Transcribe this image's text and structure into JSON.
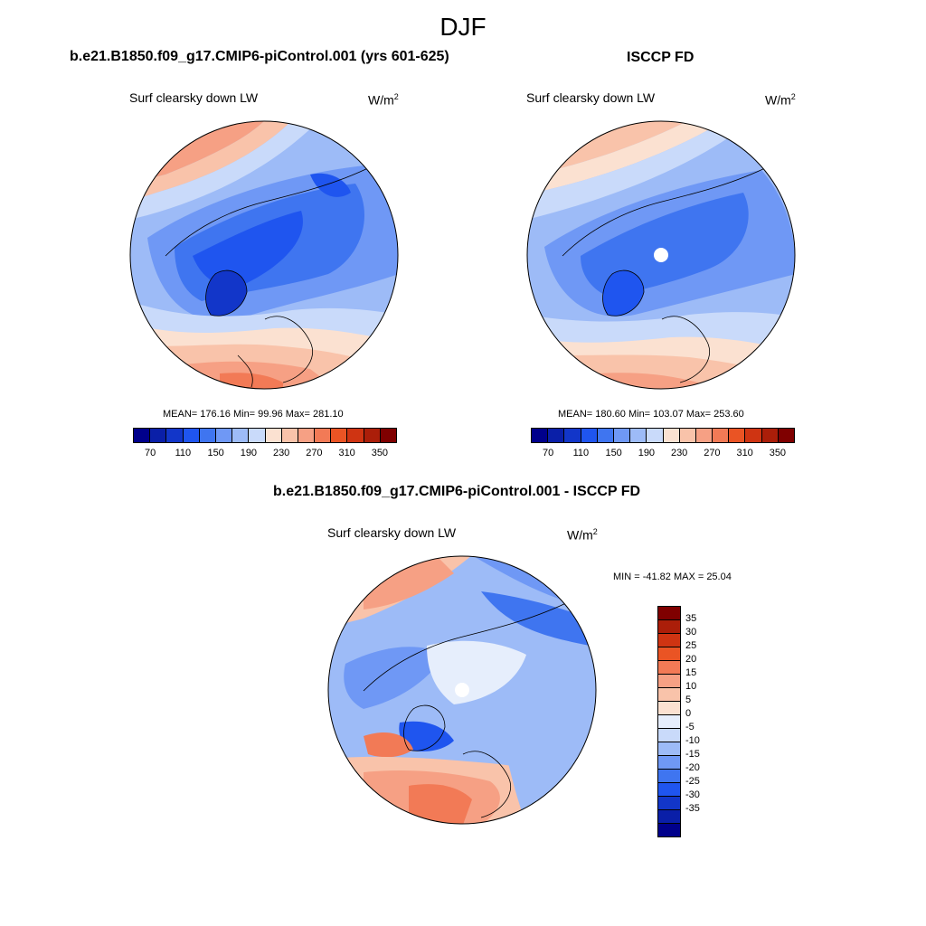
{
  "figure": {
    "season": "DJF"
  },
  "panels": [
    {
      "title": "b.e21.B1850.f09_g17.CMIP6-piControl.001 (yrs 601-625)",
      "variable": "Surf clearsky down LW",
      "units_base": "W/m",
      "units_exp": "2",
      "stats": "MEAN= 176.16  Min=  99.96  Max= 281.10"
    },
    {
      "title": "ISCCP FD",
      "variable": "Surf clearsky down LW",
      "units_base": "W/m",
      "units_exp": "2",
      "stats": "MEAN= 180.60  Min= 103.07  Max= 253.60"
    },
    {
      "title": "b.e21.B1850.f09_g17.CMIP6-piControl.001 - ISCCP FD",
      "variable": "Surf clearsky down LW",
      "units_base": "W/m",
      "units_exp": "2",
      "stats": "MIN = -41.82 MAX =  25.04"
    }
  ],
  "abs_colorbar": {
    "colors": [
      "#00008b",
      "#0a1fa8",
      "#1236c9",
      "#1f55ef",
      "#3f75f0",
      "#6f98f5",
      "#9dbbf7",
      "#c9dafa",
      "#fbe1d1",
      "#f9c3aa",
      "#f6a084",
      "#f27a56",
      "#ea5424",
      "#cf3412",
      "#ab1e09",
      "#7f0000"
    ],
    "tick_labels": [
      "70",
      "110",
      "150",
      "190",
      "230",
      "270",
      "310",
      "350"
    ]
  },
  "diff_colorbar": {
    "colors": [
      "#7f0000",
      "#ab1e09",
      "#cf3412",
      "#ea5424",
      "#f27a56",
      "#f6a084",
      "#f9c3aa",
      "#fbe1d1",
      "#e6eefc",
      "#c9dafa",
      "#9dbbf7",
      "#6f98f5",
      "#3f75f0",
      "#1f55ef",
      "#1236c9",
      "#0a1fa8",
      "#00008b"
    ],
    "tick_labels": [
      "35",
      "30",
      "25",
      "20",
      "15",
      "10",
      "5",
      "0",
      "-5",
      "-10",
      "-15",
      "-20",
      "-25",
      "-30",
      "-35"
    ]
  }
}
